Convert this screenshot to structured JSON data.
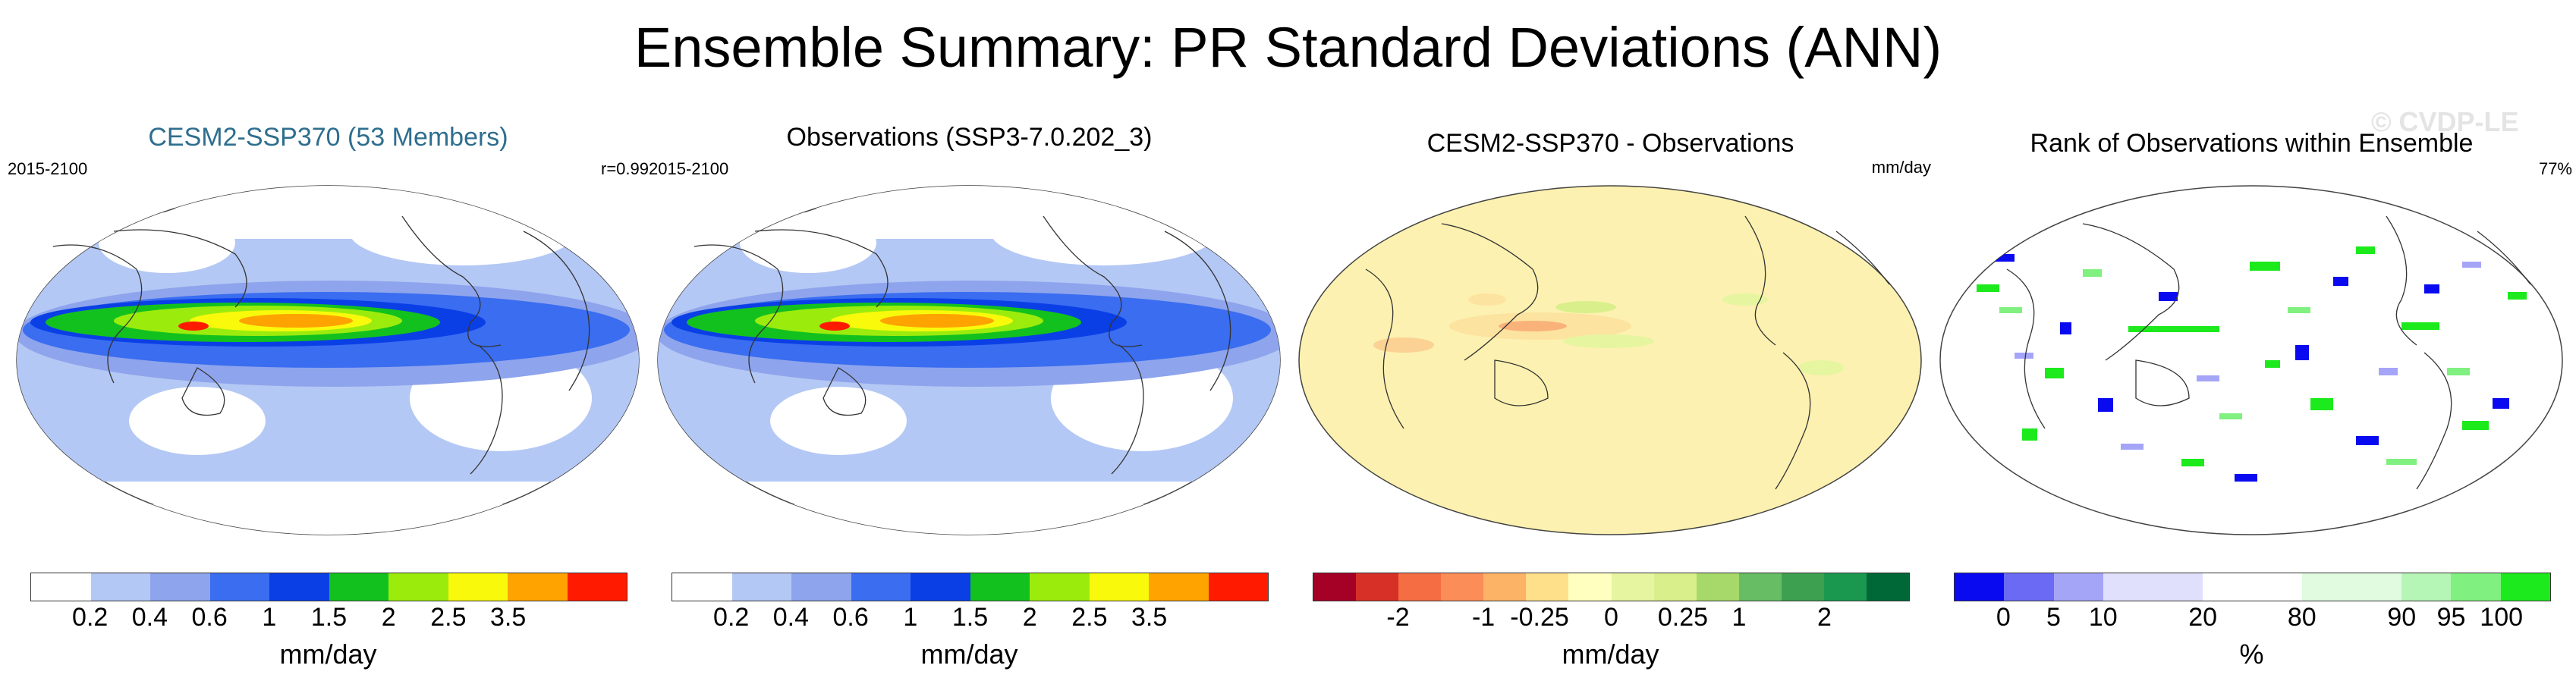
{
  "header": {
    "title": "Ensemble Summary: PR Standard Deviations (ANN)",
    "watermark": "© CVDP-LE"
  },
  "panels": [
    {
      "title": "CESM2-SSP370 (53 Members)",
      "left_label": "2015-2100",
      "right_label": "r=0.99",
      "unit": "mm/day",
      "colors": [
        "#ffffff",
        "#b4c8f5",
        "#8ea4ec",
        "#3a6df0",
        "#0b3fe6",
        "#13c11e",
        "#9bec0d",
        "#f9f90b",
        "#ffa300",
        "#ff1a00"
      ],
      "ticks": [
        "0.2",
        "0.4",
        "0.6",
        "1",
        "1.5",
        "2",
        "2.5",
        "3.5"
      ]
    },
    {
      "title": "Observations (SSP3-7.0.202_3)",
      "left_label": "2015-2100",
      "right_label": "",
      "unit": "mm/day",
      "colors": [
        "#ffffff",
        "#b4c8f5",
        "#8ea4ec",
        "#3a6df0",
        "#0b3fe6",
        "#13c11e",
        "#9bec0d",
        "#f9f90b",
        "#ffa300",
        "#ff1a00"
      ],
      "ticks": [
        "0.2",
        "0.4",
        "0.6",
        "1",
        "1.5",
        "2",
        "2.5",
        "3.5"
      ]
    },
    {
      "title": "CESM2-SSP370 - Observations",
      "left_label": "",
      "right_label": "mm/day",
      "unit": "mm/day",
      "colors": [
        "#a50026",
        "#d73027",
        "#f46d43",
        "#fb8d59",
        "#fdb366",
        "#fee08b",
        "#ffffbf",
        "#e6f5a0",
        "#d9ef8b",
        "#a6d96a",
        "#66bd63",
        "#3da050",
        "#1a9850",
        "#006837"
      ],
      "ticks": [
        "-2",
        "-1",
        "-0.25",
        "0",
        "0.25",
        "1",
        "2"
      ]
    },
    {
      "title": "Rank of Observations within Ensemble",
      "left_label": "",
      "right_label": "77%",
      "unit": "%",
      "colors": [
        "#0a0af0",
        "#6a6af5",
        "#a5a5f8",
        "#e0e0fc",
        "#ffffff",
        "#e0fbe0",
        "#b5f5b5",
        "#80f080",
        "#1cea1c"
      ],
      "ticks": [
        "0",
        "5",
        "10",
        "20",
        "80",
        "90",
        "95",
        "100"
      ]
    }
  ]
}
